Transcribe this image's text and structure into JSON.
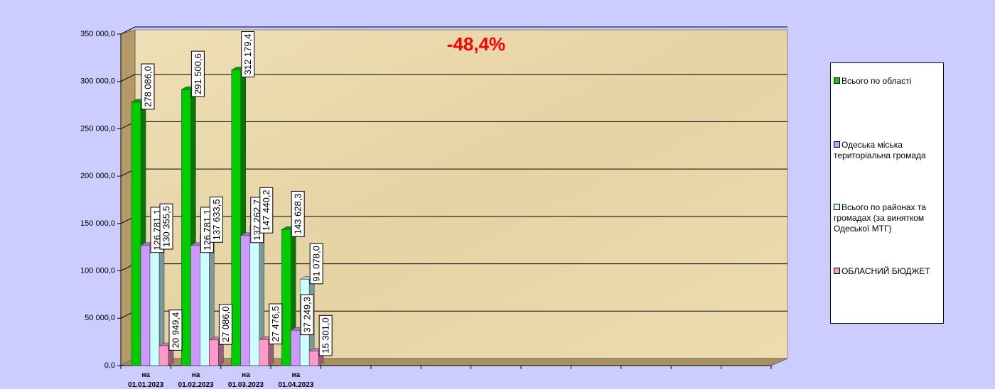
{
  "chart_data": {
    "type": "bar3d",
    "annotation": "-48,4%",
    "categories": [
      "на 01.01.2023",
      "на 01.02.2023",
      "на 01.03.2023",
      "на 01.04.2023",
      null,
      null,
      null,
      null,
      null,
      null,
      null,
      null,
      null
    ],
    "series": [
      {
        "name": "Всього по області",
        "color": "#00cc00",
        "values": [
          278086.0,
          291500.6,
          312179.4,
          143628.3,
          null,
          null,
          null,
          null,
          null,
          null,
          null,
          null,
          null
        ],
        "value_labels": [
          "278 086,0",
          "291 500,6",
          "312 179,4",
          "143 628,3",
          null,
          null,
          null,
          null,
          null,
          null,
          null,
          null,
          null
        ]
      },
      {
        "name": "Одеська міська територіальна громада",
        "color": "#cc99ff",
        "values": [
          126781.1,
          126781.1,
          137262.7,
          37249.3,
          null,
          null,
          null,
          null,
          null,
          null,
          null,
          null,
          null
        ],
        "value_labels": [
          "126 781,1",
          "126 781,1",
          "137 262,7",
          "37 249,3",
          null,
          null,
          null,
          null,
          null,
          null,
          null,
          null,
          null
        ]
      },
      {
        "name": "Всього по районах та громадах (за винятком Одеської МТГ)",
        "color": "#ccffff",
        "values": [
          130355.5,
          137633.5,
          147440.2,
          91078.0,
          null,
          null,
          null,
          null,
          null,
          null,
          null,
          null,
          null
        ],
        "value_labels": [
          "130 355,5",
          "137 633,5",
          "147 440,2",
          "91 078,0",
          null,
          null,
          null,
          null,
          null,
          null,
          null,
          null,
          null
        ]
      },
      {
        "name": "ОБЛАСНИЙ БЮДЖЕТ",
        "color": "#ff99cc",
        "values": [
          20949.4,
          27086.0,
          27476.5,
          15301.0,
          null,
          null,
          null,
          null,
          null,
          null,
          null,
          null,
          null
        ],
        "value_labels": [
          "20 949,4",
          "27 086,0",
          "27 476,5",
          "15 301,0",
          null,
          null,
          null,
          null,
          null,
          null,
          null,
          null,
          null
        ]
      }
    ],
    "ylim": [
      0,
      350000
    ],
    "yticks": [
      {
        "value": 0,
        "label": "0,0"
      },
      {
        "value": 50000,
        "label": "50 000,0"
      },
      {
        "value": 100000,
        "label": "100 000,0"
      },
      {
        "value": 150000,
        "label": "150 000,0"
      },
      {
        "value": 200000,
        "label": "200 000,0"
      },
      {
        "value": 250000,
        "label": "250 000,0"
      },
      {
        "value": 300000,
        "label": "300 000,0"
      },
      {
        "value": 350000,
        "label": "350 000,0"
      }
    ],
    "grid": true,
    "legend": "right"
  }
}
